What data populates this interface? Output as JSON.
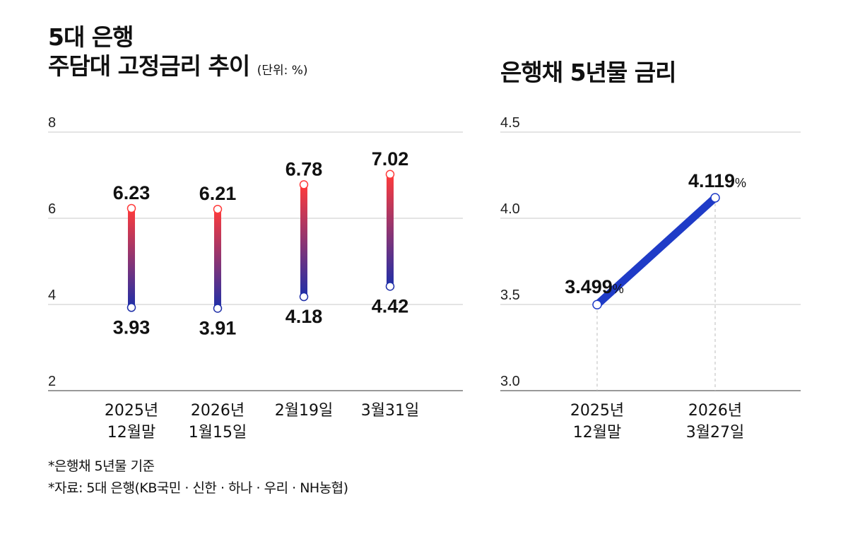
{
  "left_title": {
    "line1": "5대 은행",
    "line2": "주담대 고정금리 추이",
    "unit": "(단위: %)"
  },
  "right_title": "은행채 5년물 금리",
  "notes": {
    "note1": "*은행채 5년물 기준",
    "note2": "*자료: 5대 은행(KB국민 · 신한 · 하나 · 우리 · NH농협)"
  },
  "colors": {
    "high": "#ff3b3b",
    "low": "#1f2fa8",
    "line": "#1f3bc7",
    "grid": "#c8c8c8"
  },
  "chart_data": [
    {
      "type": "range-bar",
      "title": "5대 은행 주담대 고정금리 추이",
      "unit": "(단위: %)",
      "categories": [
        [
          "2025년",
          "12월말"
        ],
        [
          "2026년",
          "1월15일"
        ],
        [
          "2월19일"
        ],
        [
          "3월31일"
        ]
      ],
      "series": [
        {
          "name": "high",
          "values": [
            6.23,
            6.21,
            6.78,
            7.02
          ]
        },
        {
          "name": "low",
          "values": [
            3.93,
            3.91,
            4.18,
            4.42
          ]
        }
      ],
      "value_labels": {
        "high": [
          "6.23",
          "6.21",
          "6.78",
          "7.02"
        ],
        "low": [
          "3.93",
          "3.91",
          "4.18",
          "4.42"
        ]
      },
      "ylim": [
        2,
        8
      ],
      "yticks": [
        8,
        6,
        4,
        2
      ],
      "ytick_labels": [
        "8",
        "6",
        "4",
        "2"
      ]
    },
    {
      "type": "line",
      "title": "은행채 5년물 금리",
      "categories": [
        [
          "2025년",
          "12월말"
        ],
        [
          "2026년",
          "3월27일"
        ]
      ],
      "values": [
        3.499,
        4.119
      ],
      "value_labels": [
        "3.499",
        "4.119"
      ],
      "value_suffix": "%",
      "ylim": [
        3.0,
        4.5
      ],
      "yticks": [
        4.5,
        4.0,
        3.5,
        3.0
      ],
      "ytick_labels": [
        "4.5",
        "4.0",
        "3.5",
        "3.0"
      ]
    }
  ]
}
